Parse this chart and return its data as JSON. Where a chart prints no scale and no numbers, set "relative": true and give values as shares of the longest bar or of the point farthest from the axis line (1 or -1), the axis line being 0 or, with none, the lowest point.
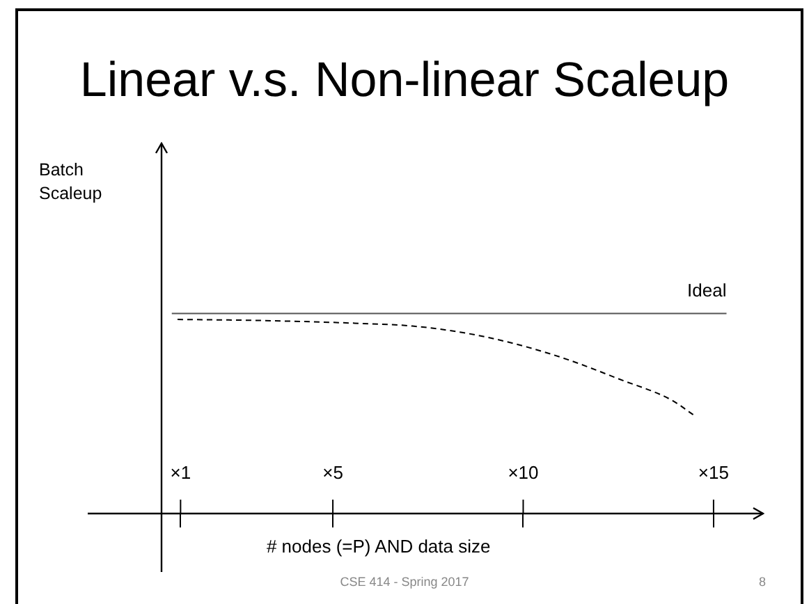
{
  "chart_data": {
    "type": "line",
    "title": "Linear v.s. Non-linear Scaleup",
    "xlabel": "# nodes (=P) AND data size",
    "relative": true,
    "xlim": [
      0.5,
      16.3
    ],
    "xticks": [
      {
        "value": 1,
        "label": "×1"
      },
      {
        "value": 5,
        "label": "×5"
      },
      {
        "value": 10,
        "label": "×10"
      },
      {
        "value": 15,
        "label": "×15"
      }
    ],
    "series": [
      {
        "name": "Ideal",
        "color": "#555555",
        "line_style": "solid",
        "x": [
          0.77,
          15.34
        ],
        "values": [
          1,
          1
        ]
      },
      {
        "color": "#000000",
        "line_style": "dashed",
        "x": [
          0.92,
          3.02,
          5.74,
          7.09,
          8.45,
          9.81,
          11.16,
          12.52,
          13.88,
          14.48
        ],
        "values": [
          0.97,
          0.965,
          0.95,
          0.937,
          0.903,
          0.847,
          0.77,
          0.672,
          0.569,
          0.492
        ]
      }
    ],
    "annotations": [
      "CSE 414 - Spring 2017",
      "8",
      "Batch Scaleup"
    ]
  }
}
